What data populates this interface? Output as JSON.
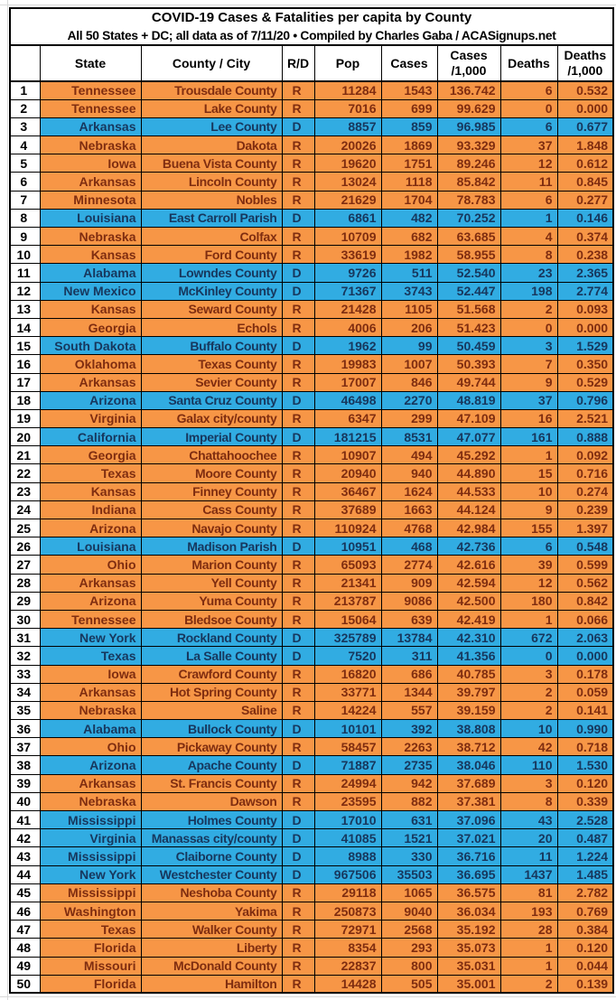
{
  "title": "COVID-19 Cases & Fatalities per capita by County",
  "subtitle": "All 50 States + DC; all data as of 7/11/20  • Compiled by Charles Gaba / ACASignups.net",
  "header": {
    "rank": "",
    "state": "State",
    "county": "County / City",
    "party": "R/D",
    "pop": "Pop",
    "cases": "Cases",
    "cases_per_k": "Cases\n/1,000",
    "deaths": "Deaths",
    "deaths_per_k": "Deaths\n/1,000"
  },
  "colors": {
    "republican_fill": "#F79646",
    "republican_text": "#7F2D10",
    "democrat_fill": "#31ACE2",
    "democrat_text": "#17375D",
    "grid_border": "#000000",
    "margin_gridline": "#D9D9D9"
  },
  "rows": [
    {
      "rank": "1",
      "state": "Tennessee",
      "county": "Trousdale County",
      "party": "R",
      "pop": "11284",
      "cases": "1543",
      "cases_per_1000": "136.742",
      "deaths": "6",
      "deaths_per_1000": "0.532"
    },
    {
      "rank": "2",
      "state": "Tennessee",
      "county": "Lake County",
      "party": "R",
      "pop": "7016",
      "cases": "699",
      "cases_per_1000": "99.629",
      "deaths": "0",
      "deaths_per_1000": "0.000"
    },
    {
      "rank": "3",
      "state": "Arkansas",
      "county": "Lee County",
      "party": "D",
      "pop": "8857",
      "cases": "859",
      "cases_per_1000": "96.985",
      "deaths": "6",
      "deaths_per_1000": "0.677"
    },
    {
      "rank": "4",
      "state": "Nebraska",
      "county": "Dakota",
      "party": "R",
      "pop": "20026",
      "cases": "1869",
      "cases_per_1000": "93.329",
      "deaths": "37",
      "deaths_per_1000": "1.848"
    },
    {
      "rank": "5",
      "state": "Iowa",
      "county": "Buena Vista County",
      "party": "R",
      "pop": "19620",
      "cases": "1751",
      "cases_per_1000": "89.246",
      "deaths": "12",
      "deaths_per_1000": "0.612"
    },
    {
      "rank": "6",
      "state": "Arkansas",
      "county": "Lincoln County",
      "party": "R",
      "pop": "13024",
      "cases": "1118",
      "cases_per_1000": "85.842",
      "deaths": "11",
      "deaths_per_1000": "0.845"
    },
    {
      "rank": "7",
      "state": "Minnesota",
      "county": "Nobles",
      "party": "R",
      "pop": "21629",
      "cases": "1704",
      "cases_per_1000": "78.783",
      "deaths": "6",
      "deaths_per_1000": "0.277"
    },
    {
      "rank": "8",
      "state": "Louisiana",
      "county": "East Carroll Parish",
      "party": "D",
      "pop": "6861",
      "cases": "482",
      "cases_per_1000": "70.252",
      "deaths": "1",
      "deaths_per_1000": "0.146"
    },
    {
      "rank": "9",
      "state": "Nebraska",
      "county": "Colfax",
      "party": "R",
      "pop": "10709",
      "cases": "682",
      "cases_per_1000": "63.685",
      "deaths": "4",
      "deaths_per_1000": "0.374"
    },
    {
      "rank": "10",
      "state": "Kansas",
      "county": "Ford County",
      "party": "R",
      "pop": "33619",
      "cases": "1982",
      "cases_per_1000": "58.955",
      "deaths": "8",
      "deaths_per_1000": "0.238"
    },
    {
      "rank": "11",
      "state": "Alabama",
      "county": "Lowndes County",
      "party": "D",
      "pop": "9726",
      "cases": "511",
      "cases_per_1000": "52.540",
      "deaths": "23",
      "deaths_per_1000": "2.365"
    },
    {
      "rank": "12",
      "state": "New Mexico",
      "county": "McKinley County",
      "party": "D",
      "pop": "71367",
      "cases": "3743",
      "cases_per_1000": "52.447",
      "deaths": "198",
      "deaths_per_1000": "2.774"
    },
    {
      "rank": "13",
      "state": "Kansas",
      "county": "Seward County",
      "party": "R",
      "pop": "21428",
      "cases": "1105",
      "cases_per_1000": "51.568",
      "deaths": "2",
      "deaths_per_1000": "0.093"
    },
    {
      "rank": "14",
      "state": "Georgia",
      "county": "Echols",
      "party": "R",
      "pop": "4006",
      "cases": "206",
      "cases_per_1000": "51.423",
      "deaths": "0",
      "deaths_per_1000": "0.000"
    },
    {
      "rank": "15",
      "state": "South Dakota",
      "county": "Buffalo County",
      "party": "D",
      "pop": "1962",
      "cases": "99",
      "cases_per_1000": "50.459",
      "deaths": "3",
      "deaths_per_1000": "1.529"
    },
    {
      "rank": "16",
      "state": "Oklahoma",
      "county": "Texas County",
      "party": "R",
      "pop": "19983",
      "cases": "1007",
      "cases_per_1000": "50.393",
      "deaths": "7",
      "deaths_per_1000": "0.350"
    },
    {
      "rank": "17",
      "state": "Arkansas",
      "county": "Sevier County",
      "party": "R",
      "pop": "17007",
      "cases": "846",
      "cases_per_1000": "49.744",
      "deaths": "9",
      "deaths_per_1000": "0.529"
    },
    {
      "rank": "18",
      "state": "Arizona",
      "county": "Santa Cruz County",
      "party": "D",
      "pop": "46498",
      "cases": "2270",
      "cases_per_1000": "48.819",
      "deaths": "37",
      "deaths_per_1000": "0.796"
    },
    {
      "rank": "19",
      "state": "Virginia",
      "county": "Galax city/county",
      "party": "R",
      "pop": "6347",
      "cases": "299",
      "cases_per_1000": "47.109",
      "deaths": "16",
      "deaths_per_1000": "2.521"
    },
    {
      "rank": "20",
      "state": "California",
      "county": "Imperial County",
      "party": "D",
      "pop": "181215",
      "cases": "8531",
      "cases_per_1000": "47.077",
      "deaths": "161",
      "deaths_per_1000": "0.888"
    },
    {
      "rank": "21",
      "state": "Georgia",
      "county": "Chattahoochee",
      "party": "R",
      "pop": "10907",
      "cases": "494",
      "cases_per_1000": "45.292",
      "deaths": "1",
      "deaths_per_1000": "0.092"
    },
    {
      "rank": "22",
      "state": "Texas",
      "county": "Moore County",
      "party": "R",
      "pop": "20940",
      "cases": "940",
      "cases_per_1000": "44.890",
      "deaths": "15",
      "deaths_per_1000": "0.716"
    },
    {
      "rank": "23",
      "state": "Kansas",
      "county": "Finney County",
      "party": "R",
      "pop": "36467",
      "cases": "1624",
      "cases_per_1000": "44.533",
      "deaths": "10",
      "deaths_per_1000": "0.274"
    },
    {
      "rank": "24",
      "state": "Indiana",
      "county": "Cass County",
      "party": "R",
      "pop": "37689",
      "cases": "1663",
      "cases_per_1000": "44.124",
      "deaths": "9",
      "deaths_per_1000": "0.239"
    },
    {
      "rank": "25",
      "state": "Arizona",
      "county": "Navajo County",
      "party": "R",
      "pop": "110924",
      "cases": "4768",
      "cases_per_1000": "42.984",
      "deaths": "155",
      "deaths_per_1000": "1.397"
    },
    {
      "rank": "26",
      "state": "Louisiana",
      "county": "Madison Parish",
      "party": "D",
      "pop": "10951",
      "cases": "468",
      "cases_per_1000": "42.736",
      "deaths": "6",
      "deaths_per_1000": "0.548"
    },
    {
      "rank": "27",
      "state": "Ohio",
      "county": "Marion County",
      "party": "R",
      "pop": "65093",
      "cases": "2774",
      "cases_per_1000": "42.616",
      "deaths": "39",
      "deaths_per_1000": "0.599"
    },
    {
      "rank": "28",
      "state": "Arkansas",
      "county": "Yell County",
      "party": "R",
      "pop": "21341",
      "cases": "909",
      "cases_per_1000": "42.594",
      "deaths": "12",
      "deaths_per_1000": "0.562"
    },
    {
      "rank": "29",
      "state": "Arizona",
      "county": "Yuma County",
      "party": "R",
      "pop": "213787",
      "cases": "9086",
      "cases_per_1000": "42.500",
      "deaths": "180",
      "deaths_per_1000": "0.842"
    },
    {
      "rank": "30",
      "state": "Tennessee",
      "county": "Bledsoe County",
      "party": "R",
      "pop": "15064",
      "cases": "639",
      "cases_per_1000": "42.419",
      "deaths": "1",
      "deaths_per_1000": "0.066"
    },
    {
      "rank": "31",
      "state": "New York",
      "county": "Rockland County",
      "party": "D",
      "pop": "325789",
      "cases": "13784",
      "cases_per_1000": "42.310",
      "deaths": "672",
      "deaths_per_1000": "2.063"
    },
    {
      "rank": "32",
      "state": "Texas",
      "county": "La Salle County",
      "party": "D",
      "pop": "7520",
      "cases": "311",
      "cases_per_1000": "41.356",
      "deaths": "0",
      "deaths_per_1000": "0.000"
    },
    {
      "rank": "33",
      "state": "Iowa",
      "county": "Crawford County",
      "party": "R",
      "pop": "16820",
      "cases": "686",
      "cases_per_1000": "40.785",
      "deaths": "3",
      "deaths_per_1000": "0.178"
    },
    {
      "rank": "34",
      "state": "Arkansas",
      "county": "Hot Spring County",
      "party": "R",
      "pop": "33771",
      "cases": "1344",
      "cases_per_1000": "39.797",
      "deaths": "2",
      "deaths_per_1000": "0.059"
    },
    {
      "rank": "35",
      "state": "Nebraska",
      "county": "Saline",
      "party": "R",
      "pop": "14224",
      "cases": "557",
      "cases_per_1000": "39.159",
      "deaths": "2",
      "deaths_per_1000": "0.141"
    },
    {
      "rank": "36",
      "state": "Alabama",
      "county": "Bullock County",
      "party": "D",
      "pop": "10101",
      "cases": "392",
      "cases_per_1000": "38.808",
      "deaths": "10",
      "deaths_per_1000": "0.990"
    },
    {
      "rank": "37",
      "state": "Ohio",
      "county": "Pickaway County",
      "party": "R",
      "pop": "58457",
      "cases": "2263",
      "cases_per_1000": "38.712",
      "deaths": "42",
      "deaths_per_1000": "0.718"
    },
    {
      "rank": "38",
      "state": "Arizona",
      "county": "Apache County",
      "party": "D",
      "pop": "71887",
      "cases": "2735",
      "cases_per_1000": "38.046",
      "deaths": "110",
      "deaths_per_1000": "1.530"
    },
    {
      "rank": "39",
      "state": "Arkansas",
      "county": "St. Francis County",
      "party": "R",
      "pop": "24994",
      "cases": "942",
      "cases_per_1000": "37.689",
      "deaths": "3",
      "deaths_per_1000": "0.120"
    },
    {
      "rank": "40",
      "state": "Nebraska",
      "county": "Dawson",
      "party": "R",
      "pop": "23595",
      "cases": "882",
      "cases_per_1000": "37.381",
      "deaths": "8",
      "deaths_per_1000": "0.339"
    },
    {
      "rank": "41",
      "state": "Mississippi",
      "county": "Holmes County",
      "party": "D",
      "pop": "17010",
      "cases": "631",
      "cases_per_1000": "37.096",
      "deaths": "43",
      "deaths_per_1000": "2.528"
    },
    {
      "rank": "42",
      "state": "Virginia",
      "county": "Manassas city/county",
      "party": "D",
      "pop": "41085",
      "cases": "1521",
      "cases_per_1000": "37.021",
      "deaths": "20",
      "deaths_per_1000": "0.487"
    },
    {
      "rank": "43",
      "state": "Mississippi",
      "county": "Claiborne County",
      "party": "D",
      "pop": "8988",
      "cases": "330",
      "cases_per_1000": "36.716",
      "deaths": "11",
      "deaths_per_1000": "1.224"
    },
    {
      "rank": "44",
      "state": "New York",
      "county": "Westchester County",
      "party": "D",
      "pop": "967506",
      "cases": "35503",
      "cases_per_1000": "36.695",
      "deaths": "1437",
      "deaths_per_1000": "1.485"
    },
    {
      "rank": "45",
      "state": "Mississippi",
      "county": "Neshoba County",
      "party": "R",
      "pop": "29118",
      "cases": "1065",
      "cases_per_1000": "36.575",
      "deaths": "81",
      "deaths_per_1000": "2.782"
    },
    {
      "rank": "46",
      "state": "Washington",
      "county": "Yakima",
      "party": "R",
      "pop": "250873",
      "cases": "9040",
      "cases_per_1000": "36.034",
      "deaths": "193",
      "deaths_per_1000": "0.769"
    },
    {
      "rank": "47",
      "state": "Texas",
      "county": "Walker County",
      "party": "R",
      "pop": "72971",
      "cases": "2568",
      "cases_per_1000": "35.192",
      "deaths": "28",
      "deaths_per_1000": "0.384"
    },
    {
      "rank": "48",
      "state": "Florida",
      "county": "Liberty",
      "party": "R",
      "pop": "8354",
      "cases": "293",
      "cases_per_1000": "35.073",
      "deaths": "1",
      "deaths_per_1000": "0.120"
    },
    {
      "rank": "49",
      "state": "Missouri",
      "county": "McDonald County",
      "party": "R",
      "pop": "22837",
      "cases": "800",
      "cases_per_1000": "35.031",
      "deaths": "1",
      "deaths_per_1000": "0.044"
    },
    {
      "rank": "50",
      "state": "Florida",
      "county": "Hamilton",
      "party": "R",
      "pop": "14428",
      "cases": "505",
      "cases_per_1000": "35.001",
      "deaths": "2",
      "deaths_per_1000": "0.139"
    }
  ]
}
